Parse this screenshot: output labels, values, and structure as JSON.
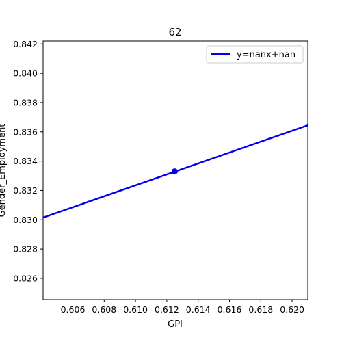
{
  "chart_data": {
    "type": "line",
    "title": "62",
    "xlabel": "GPI",
    "ylabel": "Gender_Employment",
    "xlim": [
      0.6041,
      0.621
    ],
    "ylim": [
      0.82455,
      0.8422
    ],
    "xticks": [
      "0.606",
      "0.608",
      "0.610",
      "0.612",
      "0.614",
      "0.616",
      "0.618",
      "0.620"
    ],
    "yticks": [
      "0.826",
      "0.828",
      "0.830",
      "0.832",
      "0.834",
      "0.836",
      "0.838",
      "0.840",
      "0.842"
    ],
    "series": [
      {
        "name": "y=nanx+nan",
        "kind": "line",
        "color": "#0000ee",
        "x": [
          0.6041,
          0.621
        ],
        "y": [
          0.83015,
          0.83645
        ]
      },
      {
        "kind": "scatter",
        "color": "#0000ee",
        "x": [
          0.6125
        ],
        "y": [
          0.8333
        ]
      }
    ],
    "legend": {
      "position": "top-right"
    },
    "grid": false
  }
}
